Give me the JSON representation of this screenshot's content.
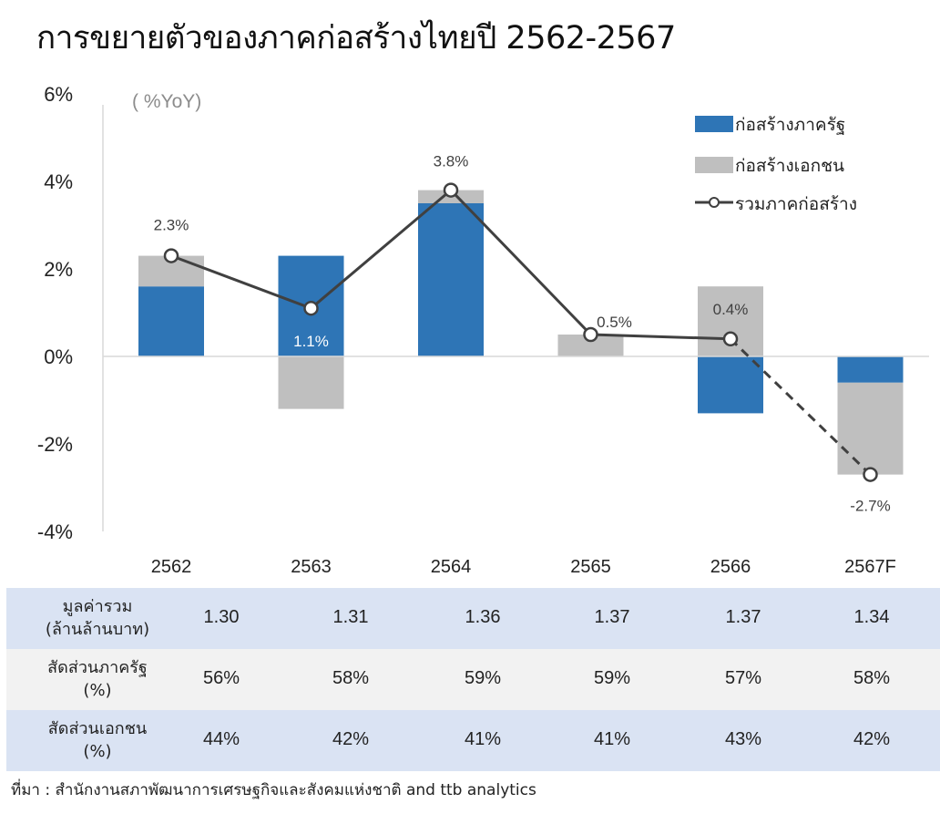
{
  "title": "การขยายตัวของภาคก่อสร้างไทยปี 2562-2567",
  "colors": {
    "public": "#2e75b6",
    "private": "#bfbfbf",
    "total": "#404040",
    "row_blue": "#dae3f3",
    "row_gray": "#f2f2f2"
  },
  "chart_data": {
    "type": "bar",
    "unit_label": "( %YoY)",
    "categories": [
      "2562",
      "2563",
      "2564",
      "2565",
      "2566",
      "2567F"
    ],
    "ylim": [
      -4,
      6
    ],
    "yticks": [
      6,
      4,
      2,
      0,
      -2,
      -4
    ],
    "ytick_labels": [
      "6%",
      "4%",
      "2%",
      "0%",
      "-2%",
      "-4%"
    ],
    "series": [
      {
        "name": "ก่อสร้างภาครัฐ",
        "type": "bar",
        "values": [
          1.6,
          2.3,
          3.5,
          0.0,
          -1.3,
          -0.6
        ]
      },
      {
        "name": "ก่อสร้างเอกชน",
        "type": "bar",
        "values": [
          0.7,
          -1.2,
          0.3,
          0.5,
          1.6,
          -2.1
        ]
      },
      {
        "name": "รวมภาคก่อสร้าง",
        "type": "line",
        "values": [
          2.3,
          1.1,
          3.8,
          0.5,
          0.4,
          -2.7
        ],
        "labels": [
          "2.3%",
          "1.1%",
          "3.8%",
          "0.5%",
          "0.4%",
          "-2.7%"
        ],
        "forecast_from_index": 4
      }
    ],
    "legend": "top-right"
  },
  "table": {
    "columns": [
      "2562",
      "2563",
      "2564",
      "2565",
      "2566",
      "2567F"
    ],
    "rows": [
      {
        "label1": "มูลค่ารวม",
        "label2": "(ล้านล้านบาท)",
        "values": [
          "1.30",
          "1.31",
          "1.36",
          "1.37",
          "1.37",
          "1.34"
        ]
      },
      {
        "label1": "สัดส่วนภาครัฐ",
        "label2": "(%)",
        "values": [
          "56%",
          "58%",
          "59%",
          "59%",
          "57%",
          "58%"
        ]
      },
      {
        "label1": "สัดส่วนเอกชน",
        "label2": "(%)",
        "values": [
          "44%",
          "42%",
          "41%",
          "41%",
          "43%",
          "42%"
        ]
      }
    ]
  },
  "source": "ที่มา : สำนักงานสภาพัฒนาการเศรษฐกิจและสังคมแห่งชาติ and ttb analytics"
}
